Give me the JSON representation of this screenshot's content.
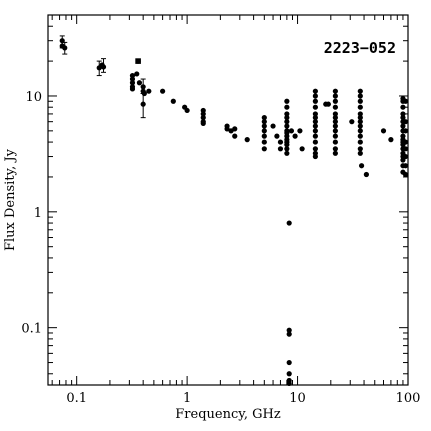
{
  "chart_data": {
    "type": "scatter",
    "title": "2223−052",
    "xlabel": "Frequency, GHz",
    "ylabel": "Flux Density, Jy",
    "xscale": "log",
    "yscale": "log",
    "xlim": [
      0.055,
      100
    ],
    "ylim": [
      0.032,
      50
    ],
    "x_ticks": [
      0.1,
      1,
      10,
      100
    ],
    "x_tick_labels": [
      "0.1",
      "1",
      "10",
      "100"
    ],
    "y_ticks": [
      0.1,
      1,
      10
    ],
    "y_tick_labels": [
      "0.1",
      "1",
      "10"
    ],
    "grid": false,
    "legend": "none",
    "marker_color": "#000000",
    "series": [
      {
        "points": [
          [
            0.074,
            30
          ],
          [
            0.074,
            27
          ],
          [
            0.078,
            26
          ],
          [
            0.16,
            17.5
          ],
          [
            0.17,
            18.5
          ],
          [
            0.175,
            17.8
          ],
          [
            0.32,
            15
          ],
          [
            0.32,
            14
          ],
          [
            0.32,
            13
          ],
          [
            0.32,
            12
          ],
          [
            0.32,
            11.5
          ],
          [
            0.35,
            15.5
          ],
          [
            0.36,
            20
          ],
          [
            0.37,
            13
          ],
          [
            0.4,
            12
          ],
          [
            0.4,
            11
          ],
          [
            0.4,
            8.5
          ],
          [
            0.41,
            10.5
          ],
          [
            0.45,
            11
          ],
          [
            0.6,
            11
          ],
          [
            0.75,
            9
          ],
          [
            0.95,
            8
          ],
          [
            1.0,
            7.5
          ],
          [
            1.4,
            7.5
          ],
          [
            1.4,
            7
          ],
          [
            1.4,
            6.5
          ],
          [
            1.4,
            6
          ],
          [
            1.4,
            5.8
          ],
          [
            2.3,
            5.5
          ],
          [
            2.3,
            5.2
          ],
          [
            2.5,
            5
          ],
          [
            2.7,
            5.2
          ],
          [
            2.7,
            4.5
          ],
          [
            3.5,
            4.2
          ],
          [
            5,
            6.5
          ],
          [
            5,
            6
          ],
          [
            5,
            5.5
          ],
          [
            5,
            5
          ],
          [
            5,
            4.5
          ],
          [
            5,
            4
          ],
          [
            5,
            3.5
          ],
          [
            6,
            5.5
          ],
          [
            6.5,
            4.5
          ],
          [
            7,
            4
          ],
          [
            7,
            3.5
          ],
          [
            8,
            9
          ],
          [
            8,
            8
          ],
          [
            8,
            7
          ],
          [
            8,
            6.5
          ],
          [
            8,
            6
          ],
          [
            8,
            5.5
          ],
          [
            8,
            5
          ],
          [
            8,
            4.8
          ],
          [
            8,
            4.5
          ],
          [
            8,
            4.2
          ],
          [
            8,
            4
          ],
          [
            8,
            3.8
          ],
          [
            8,
            3.5
          ],
          [
            8,
            3.2
          ],
          [
            8.4,
            0.8
          ],
          [
            8.4,
            0.095
          ],
          [
            8.4,
            0.088
          ],
          [
            8.4,
            0.05
          ],
          [
            8.4,
            0.04
          ],
          [
            8.4,
            0.035
          ],
          [
            8.4,
            0.033
          ],
          [
            8.8,
            5
          ],
          [
            9.5,
            4.5
          ],
          [
            10.5,
            5
          ],
          [
            11,
            3.5
          ],
          [
            14.5,
            11
          ],
          [
            14.5,
            10
          ],
          [
            14.5,
            9
          ],
          [
            14.5,
            8
          ],
          [
            14.5,
            7
          ],
          [
            14.5,
            6.5
          ],
          [
            14.5,
            6
          ],
          [
            14.5,
            5.5
          ],
          [
            14.5,
            5
          ],
          [
            14.5,
            4.5
          ],
          [
            14.5,
            4
          ],
          [
            14.5,
            3.5
          ],
          [
            14.5,
            3.2
          ],
          [
            14.5,
            3
          ],
          [
            18,
            8.5
          ],
          [
            19,
            8.5
          ],
          [
            22,
            11
          ],
          [
            22,
            10
          ],
          [
            22,
            9
          ],
          [
            22,
            8
          ],
          [
            22,
            7
          ],
          [
            22,
            6.5
          ],
          [
            22,
            6
          ],
          [
            22,
            5.5
          ],
          [
            22,
            5
          ],
          [
            22,
            4.5
          ],
          [
            22,
            4
          ],
          [
            22,
            3.5
          ],
          [
            22,
            3.2
          ],
          [
            31,
            6
          ],
          [
            37,
            11
          ],
          [
            37,
            10
          ],
          [
            37,
            9
          ],
          [
            37,
            8
          ],
          [
            37,
            7
          ],
          [
            37,
            6.5
          ],
          [
            37,
            6
          ],
          [
            37,
            5.5
          ],
          [
            37,
            5
          ],
          [
            37,
            4.5
          ],
          [
            37,
            4
          ],
          [
            37,
            3.5
          ],
          [
            37,
            3.2
          ],
          [
            38,
            2.5
          ],
          [
            42,
            2.1
          ],
          [
            60,
            5
          ],
          [
            70,
            4.2
          ],
          [
            90,
            9.5
          ],
          [
            90,
            9
          ],
          [
            90,
            8
          ],
          [
            90,
            7
          ],
          [
            90,
            6.5
          ],
          [
            90,
            6
          ],
          [
            90,
            5.5
          ],
          [
            90,
            5
          ],
          [
            90,
            4.5
          ],
          [
            90,
            4.2
          ],
          [
            90,
            4
          ],
          [
            90,
            3.8
          ],
          [
            90,
            3.5
          ],
          [
            90,
            3.2
          ],
          [
            90,
            3
          ],
          [
            90,
            2.8
          ],
          [
            90,
            2.5
          ],
          [
            90,
            2.2
          ],
          [
            95,
            9
          ],
          [
            95,
            6
          ],
          [
            95,
            5
          ],
          [
            95,
            4
          ],
          [
            95,
            3.5
          ],
          [
            95,
            3
          ],
          [
            95,
            2.5
          ],
          [
            95,
            2.1
          ]
        ],
        "error_bars": [
          [
            0.074,
            30,
            26,
            33
          ],
          [
            0.078,
            26,
            23,
            29
          ],
          [
            0.16,
            17.5,
            15,
            20
          ],
          [
            0.175,
            17.8,
            16,
            21
          ],
          [
            0.4,
            8.5,
            6.5,
            10.5
          ],
          [
            0.4,
            12,
            10.5,
            14
          ]
        ],
        "square_points": [
          [
            0.36,
            20
          ]
        ]
      }
    ]
  }
}
